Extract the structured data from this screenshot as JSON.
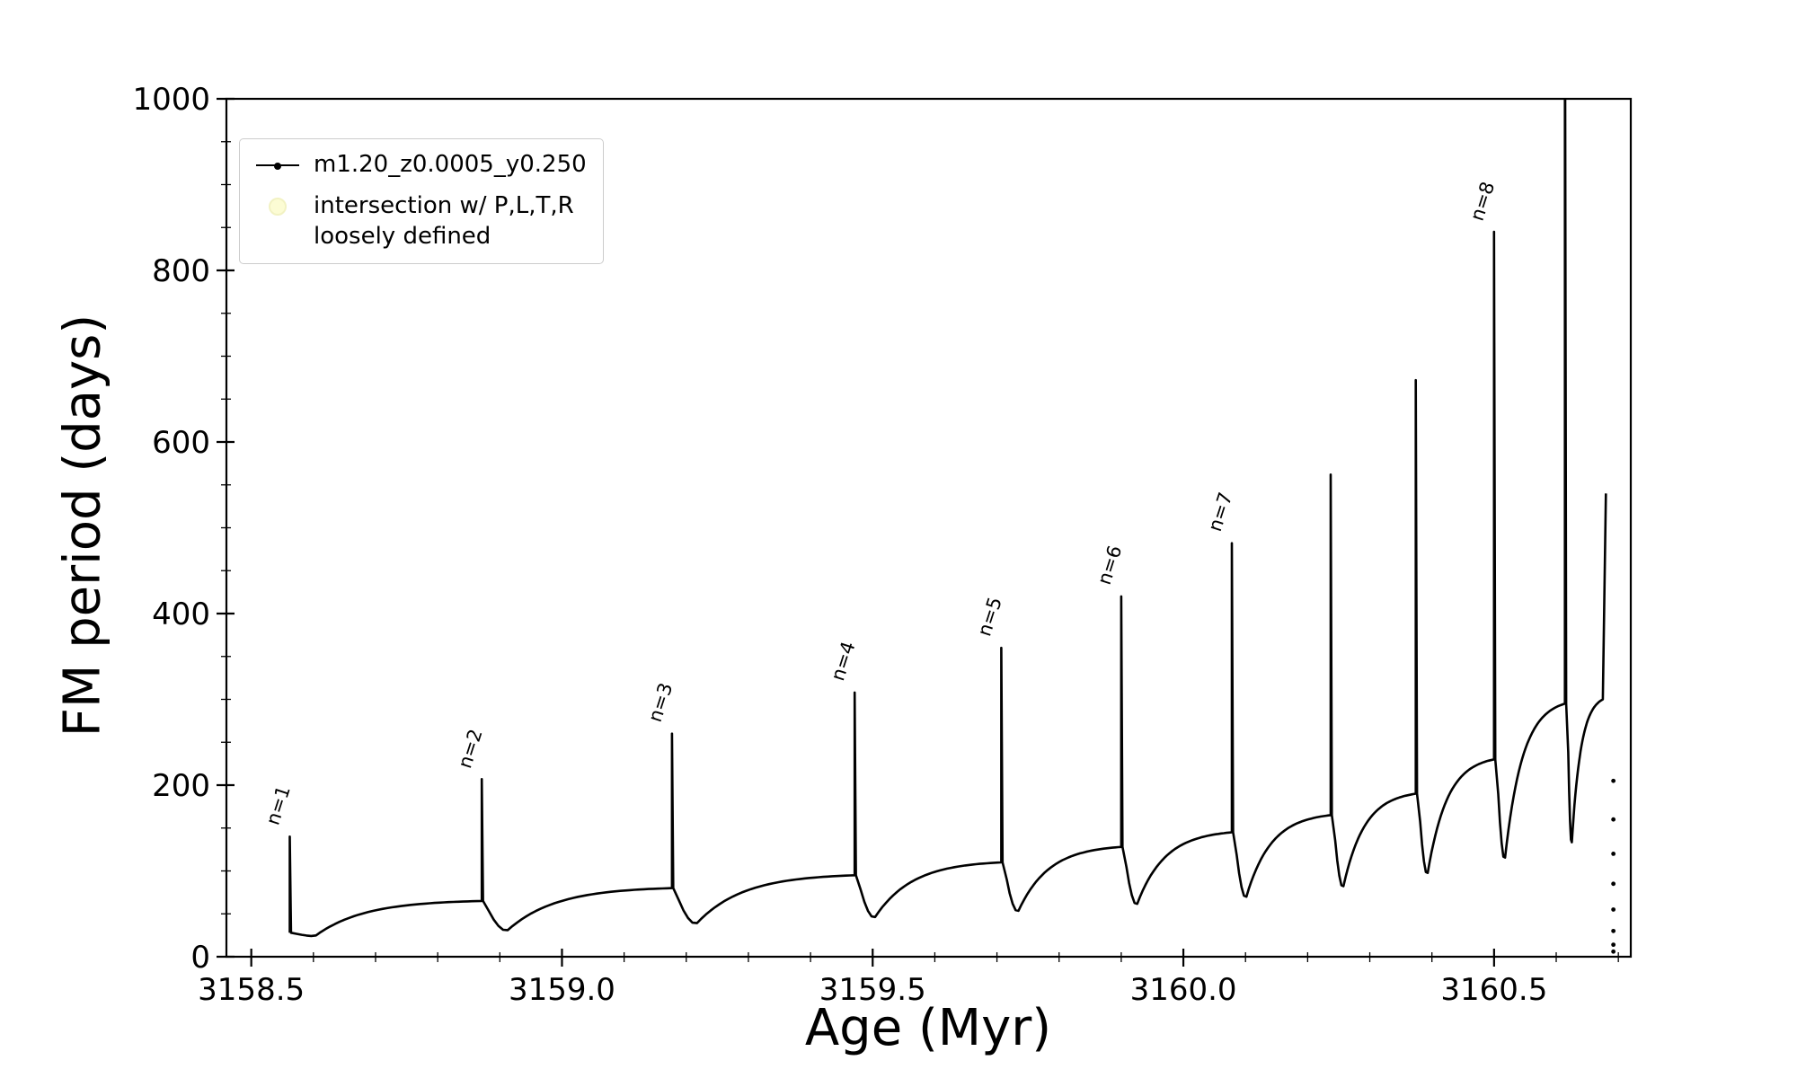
{
  "chart_data": {
    "type": "line",
    "title": "",
    "xlabel": "Age (Myr)",
    "ylabel": "FM period (days)",
    "xlim": [
      3158.46,
      3160.72
    ],
    "ylim": [
      0,
      1000
    ],
    "xticks": [
      3158.5,
      3159.0,
      3159.5,
      3160.0,
      3160.5
    ],
    "xtick_labels": [
      "3158.5",
      "3159.0",
      "3159.5",
      "3160.0",
      "3160.5"
    ],
    "yticks": [
      0,
      200,
      400,
      600,
      800,
      1000
    ],
    "ytick_labels": [
      "0",
      "200",
      "400",
      "600",
      "800",
      "1000"
    ],
    "x_minor_step": 0.1,
    "y_minor_step": 50,
    "grid": false,
    "series_name": "m1.20_z0.0005_y0.250",
    "line_color": "#000000",
    "legend": {
      "position": "upper left",
      "series_label": "m1.20_z0.0005_y0.250",
      "series_color": "#000000",
      "intersection_line1": "intersection w/ P,L,T,R",
      "intersection_line2": "loosely defined",
      "intersection_face": "#fbfbc6",
      "intersection_edge": "#eeeeb0"
    },
    "cycles": [
      {
        "label": "n=1",
        "x": 3158.562,
        "peak": 140,
        "start": 28,
        "dip": 24,
        "plateau": 65,
        "x_next": 3158.871
      },
      {
        "label": "n=2",
        "x": 3158.871,
        "peak": 207,
        "start": 65,
        "dip": 30,
        "plateau": 80,
        "x_next": 3159.177
      },
      {
        "label": "n=3",
        "x": 3159.177,
        "peak": 260,
        "start": 80,
        "dip": 38,
        "plateau": 95,
        "x_next": 3159.471
      },
      {
        "label": "n=4",
        "x": 3159.471,
        "peak": 308,
        "start": 95,
        "dip": 45,
        "plateau": 110,
        "x_next": 3159.707
      },
      {
        "label": "n=5",
        "x": 3159.707,
        "peak": 360,
        "start": 110,
        "dip": 52,
        "plateau": 128,
        "x_next": 3159.9
      },
      {
        "label": "n=6",
        "x": 3159.9,
        "peak": 420,
        "start": 128,
        "dip": 60,
        "plateau": 145,
        "x_next": 3160.078
      },
      {
        "label": "n=7",
        "x": 3160.078,
        "peak": 482,
        "start": 145,
        "dip": 68,
        "plateau": 165,
        "x_next": 3160.237
      },
      {
        "label": "",
        "x": 3160.237,
        "peak": 562,
        "start": 165,
        "dip": 80,
        "plateau": 190,
        "x_next": 3160.374
      },
      {
        "label": "",
        "x": 3160.374,
        "peak": 672,
        "start": 190,
        "dip": 95,
        "plateau": 230,
        "x_next": 3160.5
      },
      {
        "label": "n=8",
        "x": 3160.5,
        "peak": 845,
        "start": 230,
        "dip": 112,
        "plateau": 295,
        "x_next": 3160.614
      },
      {
        "label": "",
        "x": 3160.614,
        "peak": 1200,
        "start": 295,
        "dip": 130,
        "plateau": 300,
        "x_next": 3160.675
      }
    ],
    "final_rise": {
      "x1": 3160.675,
      "y1": 300,
      "x2": 3160.68,
      "y2": 540
    },
    "tail_dots": {
      "x": 3160.692,
      "values": [
        205,
        160,
        120,
        85,
        55,
        30,
        14,
        6
      ]
    },
    "annotations": [
      {
        "text": "n=1",
        "x": 3158.562,
        "y": 148
      },
      {
        "text": "n=2",
        "x": 3158.871,
        "y": 214
      },
      {
        "text": "n=3",
        "x": 3159.177,
        "y": 268
      },
      {
        "text": "n=4",
        "x": 3159.471,
        "y": 316
      },
      {
        "text": "n=5",
        "x": 3159.707,
        "y": 368
      },
      {
        "text": "n=6",
        "x": 3159.9,
        "y": 428
      },
      {
        "text": "n=7",
        "x": 3160.078,
        "y": 490
      },
      {
        "text": "n=8",
        "x": 3160.5,
        "y": 852
      }
    ]
  }
}
